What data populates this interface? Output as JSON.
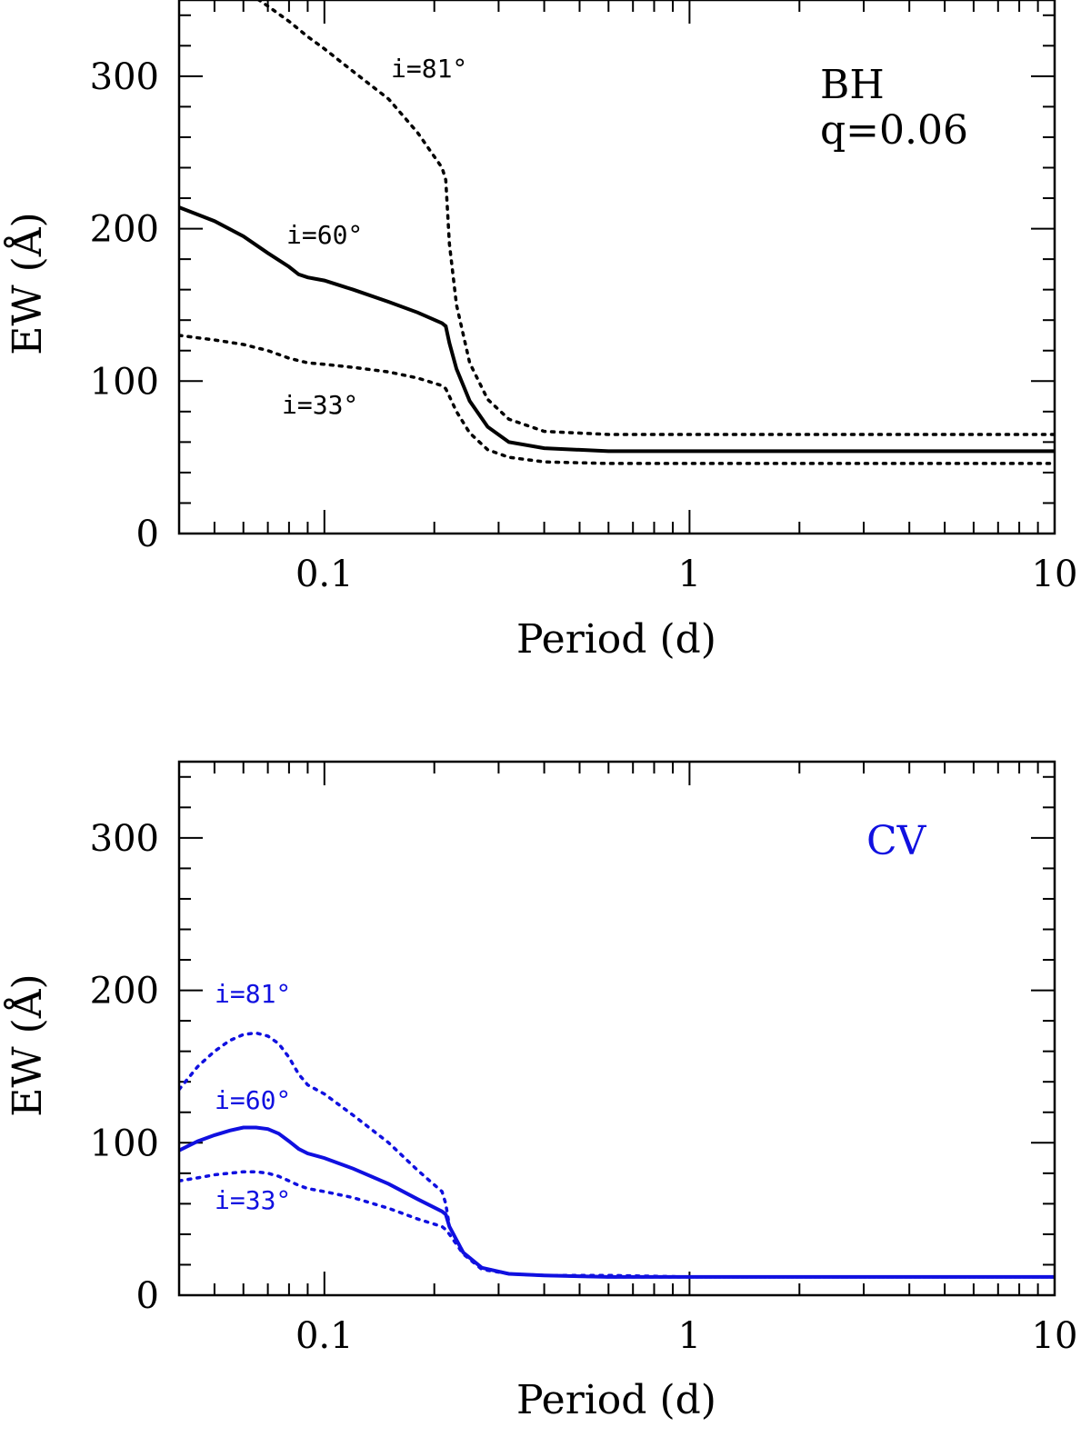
{
  "colors": {
    "top": "#000000",
    "bottom": "#1010e0"
  },
  "chart_data": [
    {
      "type": "line",
      "title": "",
      "xlabel": "Period (d)",
      "ylabel": "EW (Å)",
      "x_scale": "log",
      "xlim": [
        0.04,
        10
      ],
      "ylim": [
        0,
        350
      ],
      "x_tick_labels": [
        "0.1",
        "1",
        "10"
      ],
      "y_tick_labels": [
        "0",
        "100",
        "200",
        "300"
      ],
      "panel_labels": [
        "BH",
        "q=0.06"
      ],
      "series": [
        {
          "style": "dotted",
          "x": [
            0.04,
            0.05,
            0.06,
            0.07,
            0.08,
            0.09,
            0.1,
            0.12,
            0.15,
            0.18,
            0.21,
            0.215,
            0.22,
            0.23,
            0.25,
            0.28,
            0.32,
            0.4,
            0.6,
            1,
            2,
            5,
            10
          ],
          "y": [
            380,
            368,
            357,
            346,
            336,
            326,
            318,
            303,
            285,
            263,
            240,
            232,
            190,
            150,
            112,
            88,
            75,
            67,
            65,
            65,
            65,
            65,
            65
          ]
        },
        {
          "style": "solid",
          "x": [
            0.04,
            0.05,
            0.06,
            0.07,
            0.08,
            0.085,
            0.09,
            0.1,
            0.12,
            0.15,
            0.18,
            0.21,
            0.215,
            0.22,
            0.23,
            0.25,
            0.28,
            0.32,
            0.4,
            0.6,
            1,
            2,
            5,
            10
          ],
          "y": [
            214,
            205,
            195,
            184,
            175,
            170,
            168,
            166,
            160,
            152,
            145,
            138,
            136,
            125,
            108,
            87,
            70,
            60,
            56,
            54,
            54,
            54,
            54,
            54
          ]
        },
        {
          "style": "dotted",
          "x": [
            0.04,
            0.05,
            0.06,
            0.07,
            0.08,
            0.09,
            0.1,
            0.12,
            0.15,
            0.18,
            0.21,
            0.215,
            0.22,
            0.23,
            0.25,
            0.28,
            0.32,
            0.4,
            0.6,
            1,
            2,
            5,
            10
          ],
          "y": [
            130,
            127,
            124,
            120,
            115,
            112,
            111,
            109,
            106,
            102,
            97,
            95,
            90,
            80,
            66,
            55,
            50,
            47,
            46,
            46,
            46,
            46,
            46
          ]
        }
      ],
      "annotations": [
        "i=81°",
        "i=60°",
        "i=33°"
      ]
    },
    {
      "type": "line",
      "title": "",
      "xlabel": "Period (d)",
      "ylabel": "EW (Å)",
      "x_scale": "log",
      "xlim": [
        0.04,
        10
      ],
      "ylim": [
        0,
        350
      ],
      "x_tick_labels": [
        "0.1",
        "1",
        "10"
      ],
      "y_tick_labels": [
        "0",
        "100",
        "200",
        "300"
      ],
      "panel_labels": [
        "CV"
      ],
      "series": [
        {
          "style": "dotted",
          "x": [
            0.04,
            0.045,
            0.05,
            0.055,
            0.06,
            0.065,
            0.07,
            0.075,
            0.08,
            0.085,
            0.09,
            0.1,
            0.12,
            0.15,
            0.18,
            0.21,
            0.215,
            0.22,
            0.24,
            0.27,
            0.32,
            0.4,
            0.6,
            1,
            2,
            5,
            10
          ],
          "y": [
            135,
            150,
            160,
            167,
            171,
            172,
            170,
            165,
            156,
            145,
            138,
            132,
            118,
            100,
            82,
            68,
            60,
            45,
            28,
            18,
            14,
            13,
            13,
            12,
            12,
            12,
            12
          ]
        },
        {
          "style": "solid",
          "x": [
            0.04,
            0.045,
            0.05,
            0.055,
            0.06,
            0.065,
            0.07,
            0.075,
            0.08,
            0.085,
            0.09,
            0.1,
            0.12,
            0.15,
            0.18,
            0.21,
            0.215,
            0.22,
            0.24,
            0.27,
            0.32,
            0.4,
            0.6,
            1,
            2,
            5,
            10
          ],
          "y": [
            95,
            101,
            105,
            108,
            110,
            110,
            109,
            106,
            101,
            96,
            93,
            90,
            83,
            73,
            63,
            55,
            53,
            45,
            28,
            18,
            14,
            13,
            12,
            12,
            12,
            12,
            12
          ]
        },
        {
          "style": "dotted",
          "x": [
            0.04,
            0.045,
            0.05,
            0.055,
            0.06,
            0.065,
            0.07,
            0.075,
            0.08,
            0.085,
            0.09,
            0.1,
            0.12,
            0.15,
            0.18,
            0.21,
            0.215,
            0.22,
            0.24,
            0.27,
            0.32,
            0.4,
            0.6,
            1,
            2,
            5,
            10
          ],
          "y": [
            75,
            77,
            79,
            80,
            81,
            81,
            80,
            78,
            75,
            72,
            70,
            68,
            64,
            57,
            50,
            45,
            43,
            40,
            27,
            17,
            14,
            13,
            12,
            12,
            12,
            12,
            12
          ]
        }
      ],
      "annotations": [
        "i=81°",
        "i=60°",
        "i=33°"
      ]
    }
  ]
}
